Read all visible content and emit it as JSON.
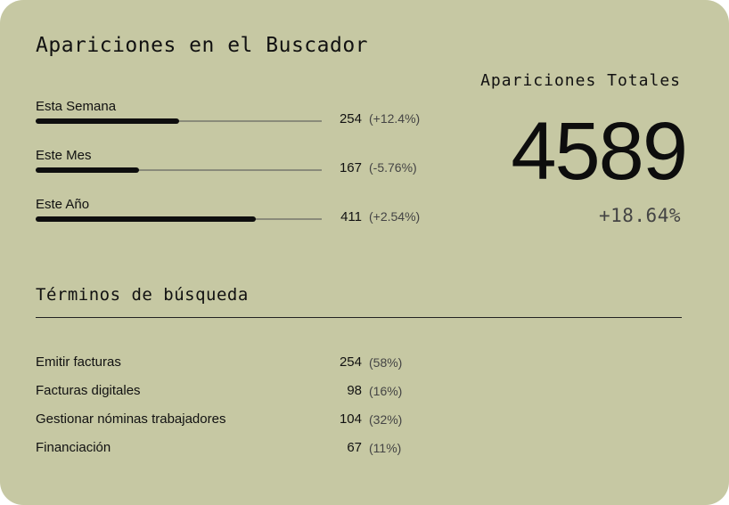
{
  "card": {
    "title": "Apariciones en el Buscador"
  },
  "metrics": [
    {
      "label": "Esta Semana",
      "value": "254",
      "change": "(+12.4%)",
      "fill_fraction": 0.5
    },
    {
      "label": "Este Mes",
      "value": "167",
      "change": "(-5.76%)",
      "fill_fraction": 0.36
    },
    {
      "label": "Este Año",
      "value": "411",
      "change": "(+2.54%)",
      "fill_fraction": 0.77
    }
  ],
  "totals": {
    "label": "Apariciones Totales",
    "value": "4589",
    "change": "+18.64%"
  },
  "search_terms": {
    "title": "Términos de búsqueda",
    "items": [
      {
        "term": "Emitir facturas",
        "count": "254",
        "share": "(58%)"
      },
      {
        "term": "Facturas digitales",
        "count": "98",
        "share": "(16%)"
      },
      {
        "term": "Gestionar nóminas trabajadores",
        "count": "104",
        "share": "(32%)"
      },
      {
        "term": "Financiación",
        "count": "67",
        "share": "(11%)"
      }
    ]
  },
  "colors": {
    "card_background": "#c6c8a3",
    "bar_fill": "#0e0e0e",
    "bar_track": "#8a8b7a",
    "text": "#111111",
    "muted_text": "#444444"
  }
}
